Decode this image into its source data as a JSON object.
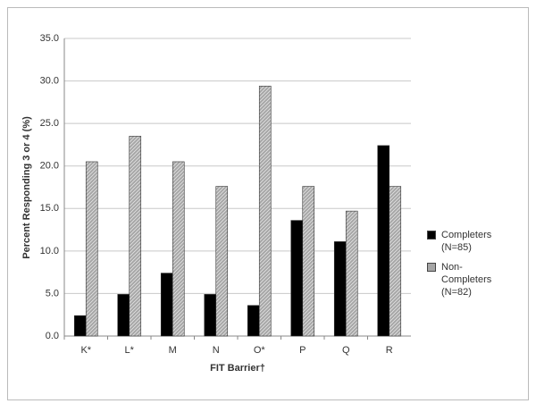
{
  "chart_data": {
    "type": "bar",
    "y_label": "Percent Responding 3 or 4 (%)",
    "x_label": "FIT Barrier†",
    "categories": [
      "K*",
      "L*",
      "M",
      "N",
      "O*",
      "P",
      "Q",
      "R"
    ],
    "series": [
      {
        "name": "Completers (N=85)",
        "color": "#000000",
        "values": [
          2.4,
          4.9,
          7.4,
          4.9,
          3.6,
          13.6,
          11.1,
          22.4
        ]
      },
      {
        "name": "Non-Completers (N=82)",
        "color": "#a6a6a6",
        "values": [
          20.5,
          23.5,
          20.5,
          17.6,
          29.4,
          17.6,
          14.7,
          17.6
        ]
      }
    ],
    "ylim": [
      0,
      35
    ],
    "yticks": [
      {
        "value": 0,
        "label": "0.0"
      },
      {
        "value": 5,
        "label": "5.0"
      },
      {
        "value": 10,
        "label": "10.0"
      },
      {
        "value": 15,
        "label": "15.0"
      },
      {
        "value": 20,
        "label": "20.0"
      },
      {
        "value": 25,
        "label": "25.0"
      },
      {
        "value": 30,
        "label": "30.0"
      },
      {
        "value": 35,
        "label": "35.0"
      }
    ],
    "grid": true,
    "legend": "right"
  }
}
